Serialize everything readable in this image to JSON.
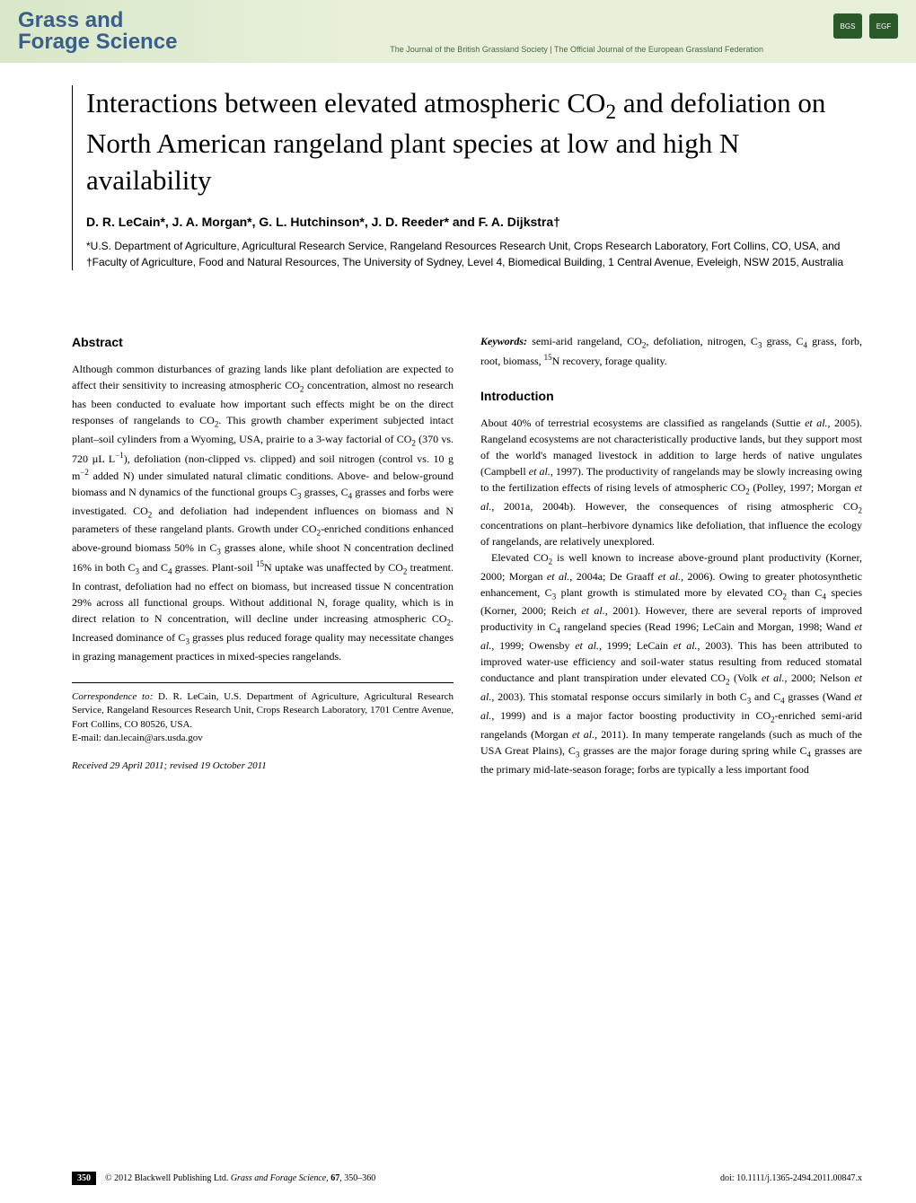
{
  "header": {
    "journal_line1": "Grass and",
    "journal_line2": "Forage Science",
    "subtitle": "The Journal of the British Grassland Society | The Official Journal of the European Grassland Federation",
    "badge1": "BGS",
    "badge2": "EGF"
  },
  "article": {
    "title_html": "Interactions between elevated atmospheric CO<sub>2</sub> and defoliation on North American rangeland plant species at low and high N availability",
    "authors": "D. R. LeCain*, J. A. Morgan*, G. L. Hutchinson*, J. D. Reeder* and F. A. Dijkstra†",
    "affiliations": "*U.S. Department of Agriculture, Agricultural Research Service, Rangeland Resources Research Unit, Crops Research Laboratory, Fort Collins, CO, USA, and †Faculty of Agriculture, Food and Natural Resources, The University of Sydney, Level 4, Biomedical Building, 1 Central Avenue, Eveleigh, NSW 2015, Australia"
  },
  "abstract": {
    "heading": "Abstract",
    "text_html": "Although common disturbances of grazing lands like plant defoliation are expected to affect their sensitivity to increasing atmospheric CO<sub>2</sub> concentration, almost no research has been conducted to evaluate how important such effects might be on the direct responses of rangelands to CO<sub>2</sub>. This growth chamber experiment subjected intact plant–soil cylinders from a Wyoming, USA, prairie to a 3-way factorial of CO<sub>2</sub> (370 vs. 720 µL L<sup>−1</sup>), defoliation (non-clipped vs. clipped) and soil nitrogen (control vs. 10 g m<sup>−2</sup> added N) under simulated natural climatic conditions. Above- and below-ground biomass and N dynamics of the functional groups C<sub>3</sub> grasses, C<sub>4</sub> grasses and forbs were investigated. CO<sub>2</sub> and defoliation had independent influences on biomass and N parameters of these rangeland plants. Growth under CO<sub>2</sub>-enriched conditions enhanced above-ground biomass 50% in C<sub>3</sub> grasses alone, while shoot N concentration declined 16% in both C<sub>3</sub> and C<sub>4</sub> grasses. Plant-soil <sup>15</sup>N uptake was unaffected by CO<sub>2</sub> treatment. In contrast, defoliation had no effect on biomass, but increased tissue N concentration 29% across all functional groups. Without additional N, forage quality, which is in direct relation to N concentration, will decline under increasing atmospheric CO<sub>2</sub>. Increased dominance of C<sub>3</sub> grasses plus reduced forage quality may necessitate changes in grazing management practices in mixed-species rangelands."
  },
  "keywords": {
    "label": "Keywords:",
    "text_html": "semi-arid rangeland, CO<sub>2</sub>, defoliation, nitrogen, C<sub>3</sub> grass, C<sub>4</sub> grass, forb, root, biomass, <sup>15</sup>N recovery, forage quality."
  },
  "introduction": {
    "heading": "Introduction",
    "para1_html": "About 40% of terrestrial ecosystems are classified as rangelands (Suttie <i>et al.</i>, 2005). Rangeland ecosystems are not characteristically productive lands, but they support most of the world's managed livestock in addition to large herds of native ungulates (Campbell <i>et al.</i>, 1997). The productivity of rangelands may be slowly increasing owing to the fertilization effects of rising levels of atmospheric CO<sub>2</sub> (Polley, 1997; Morgan <i>et al.</i>, 2001a, 2004b). However, the consequences of rising atmospheric CO<sub>2</sub> concentrations on plant–herbivore dynamics like defoliation, that influence the ecology of rangelands, are relatively unexplored.",
    "para2_html": "Elevated CO<sub>2</sub> is well known to increase above-ground plant productivity (Korner, 2000; Morgan <i>et al.</i>, 2004a; De Graaff <i>et al.</i>, 2006). Owing to greater photosynthetic enhancement, C<sub>3</sub> plant growth is stimulated more by elevated CO<sub>2</sub> than C<sub>4</sub> species (Korner, 2000; Reich <i>et al.</i>, 2001). However, there are several reports of improved productivity in C<sub>4</sub> rangeland species (Read 1996; LeCain and Morgan, 1998; Wand <i>et al.</i>, 1999; Owensby <i>et al.</i>, 1999; LeCain <i>et al.</i>, 2003). This has been attributed to improved water-use efficiency and soil-water status resulting from reduced stomatal conductance and plant transpiration under elevated CO<sub>2</sub> (Volk <i>et al.</i>, 2000; Nelson <i>et al.</i>, 2003). This stomatal response occurs similarly in both C<sub>3</sub> and C<sub>4</sub> grasses (Wand <i>et al.</i>, 1999) and is a major factor boosting productivity in CO<sub>2</sub>-enriched semi-arid rangelands (Morgan <i>et al.</i>, 2011). In many temperate rangelands (such as much of the USA Great Plains), C<sub>3</sub> grasses are the major forage during spring while C<sub>4</sub> grasses are the primary mid-late-season forage; forbs are typically a less important food"
  },
  "correspondence": {
    "label": "Correspondence to:",
    "text": "D. R. LeCain, U.S. Department of Agriculture, Agricultural Research Service, Rangeland Resources Research Unit, Crops Research Laboratory, 1701 Centre Avenue, Fort Collins, CO 80526, USA.",
    "email_label": "E-mail:",
    "email": "dan.lecain@ars.usda.gov"
  },
  "received": "Received 29 April 2011; revised 19 October 2011",
  "footer": {
    "page": "350",
    "copyright_html": "© 2012 Blackwell Publishing Ltd. <i>Grass and Forage Science</i>, <b>67</b>, 350–360",
    "doi": "doi: 10.1111/j.1365-2494.2011.00847.x"
  }
}
